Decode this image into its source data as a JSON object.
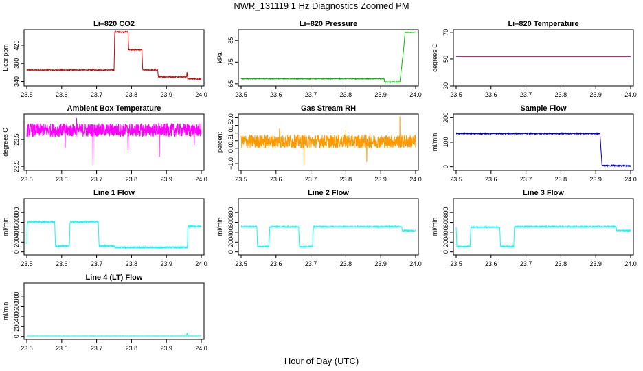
{
  "page": {
    "title": "NWR_131119  1 Hz Diagnostics Zoomed PM",
    "x_axis_title": "Hour of Day (UTC)"
  },
  "chart_data": [
    {
      "type": "line",
      "title": "Li–820 CO2",
      "ylabel": "Licor ppm",
      "color": "#dd0000",
      "xlim": [
        23.5,
        24.0
      ],
      "ylim": [
        330,
        455
      ],
      "x_ticks": [
        23.5,
        23.6,
        23.7,
        23.8,
        23.9,
        24.0
      ],
      "y_ticks": [
        340,
        380,
        420
      ],
      "x_tick_labels": [
        "23.5",
        "23.6",
        "23.7",
        "23.8",
        "23.9",
        "24.0"
      ],
      "y_tick_labels": [
        "340",
        "380",
        "420"
      ],
      "points": [
        [
          23.5,
          365
        ],
        [
          23.75,
          365
        ],
        [
          23.752,
          450
        ],
        [
          23.79,
          450
        ],
        [
          23.792,
          410
        ],
        [
          23.83,
          410
        ],
        [
          23.832,
          365
        ],
        [
          23.875,
          365
        ],
        [
          23.877,
          350
        ],
        [
          23.958,
          350
        ],
        [
          23.959,
          362
        ],
        [
          23.961,
          346
        ],
        [
          24.0,
          345
        ]
      ],
      "noise": 1
    },
    {
      "type": "line",
      "title": "Li–820 Pressure",
      "ylabel": "kPa",
      "color": "#00bb00",
      "xlim": [
        23.5,
        24.0
      ],
      "ylim": [
        64,
        90
      ],
      "x_ticks": [
        23.5,
        23.6,
        23.7,
        23.8,
        23.9,
        24.0
      ],
      "y_ticks": [
        65,
        75,
        85
      ],
      "x_tick_labels": [
        "23.5",
        "23.6",
        "23.7",
        "23.8",
        "23.9",
        "24.0"
      ],
      "y_tick_labels": [
        "65",
        "75",
        "85"
      ],
      "points": [
        [
          23.5,
          67.3
        ],
        [
          23.91,
          67.3
        ],
        [
          23.911,
          65.8
        ],
        [
          23.955,
          65.8
        ],
        [
          23.965,
          80
        ],
        [
          23.97,
          88.8
        ],
        [
          24.0,
          88.8
        ]
      ],
      "noise": 0.15
    },
    {
      "type": "line",
      "title": "Li–820 Temperature",
      "ylabel": "degrees C",
      "color": "#cc0077",
      "xlim": [
        23.5,
        24.0
      ],
      "ylim": [
        30,
        72
      ],
      "x_ticks": [
        23.5,
        23.6,
        23.7,
        23.8,
        23.9,
        24.0
      ],
      "y_ticks": [
        30,
        50,
        70
      ],
      "x_tick_labels": [
        "23.5",
        "23.6",
        "23.7",
        "23.8",
        "23.9",
        "24.0"
      ],
      "y_tick_labels": [
        "30",
        "50",
        "70"
      ],
      "points": [
        [
          23.5,
          51.8
        ],
        [
          24.0,
          51.8
        ]
      ],
      "noise": 0
    },
    {
      "type": "line",
      "title": "Ambient Box Temperature",
      "ylabel": "degrees C",
      "color": "#ff00ff",
      "xlim": [
        23.5,
        24.0
      ],
      "ylim": [
        22.35,
        24.45
      ],
      "x_ticks": [
        23.5,
        23.6,
        23.7,
        23.8,
        23.9,
        24.0
      ],
      "y_ticks": [
        22.5,
        23.5
      ],
      "x_tick_labels": [
        "23.5",
        "23.6",
        "23.7",
        "23.8",
        "23.9",
        "24.0"
      ],
      "y_tick_labels": [
        "22.5",
        "23.5"
      ],
      "points": [
        [
          23.5,
          23.85
        ],
        [
          24.0,
          23.85
        ]
      ],
      "noise": 0.25,
      "spikes": [
        [
          23.643,
          24.3
        ],
        [
          23.69,
          22.55
        ],
        [
          23.61,
          23.2
        ],
        [
          23.79,
          23.1
        ],
        [
          23.88,
          22.85
        ],
        [
          23.98,
          23.3
        ]
      ]
    },
    {
      "type": "line",
      "title": "Gas Stream RH",
      "ylabel": "percent",
      "color": "#ff9900",
      "xlim": [
        23.5,
        24.0
      ],
      "ylim": [
        -1.45,
        2.25
      ],
      "x_ticks": [
        23.5,
        23.6,
        23.7,
        23.8,
        23.9,
        24.0
      ],
      "y_ticks": [
        -1.0,
        0.0,
        0.5,
        1.0,
        1.5,
        2.0
      ],
      "x_tick_labels": [
        "23.5",
        "23.6",
        "23.7",
        "23.8",
        "23.9",
        "24.0"
      ],
      "y_tick_labels": [
        "−1.0",
        "0.0",
        "0.5",
        "1.0",
        "1.5",
        "2.0"
      ],
      "points": [
        [
          23.5,
          0.45
        ],
        [
          24.0,
          0.45
        ]
      ],
      "noise": 0.45,
      "spikes": [
        [
          23.955,
          2.1
        ],
        [
          23.68,
          -1.1
        ],
        [
          23.61,
          1.3
        ],
        [
          23.8,
          1.2
        ],
        [
          23.86,
          -0.9
        ]
      ]
    },
    {
      "type": "line",
      "title": "Sample Flow",
      "ylabel": "ml/min",
      "color": "#0000cc",
      "xlim": [
        23.5,
        24.0
      ],
      "ylim": [
        -15,
        215
      ],
      "x_ticks": [
        23.5,
        23.6,
        23.7,
        23.8,
        23.9,
        24.0
      ],
      "y_ticks": [
        0,
        100,
        200
      ],
      "x_tick_labels": [
        "23.5",
        "23.6",
        "23.7",
        "23.8",
        "23.9",
        "24.0"
      ],
      "y_tick_labels": [
        "0",
        "100",
        "200"
      ],
      "points": [
        [
          23.5,
          135
        ],
        [
          23.912,
          135
        ],
        [
          23.918,
          5
        ],
        [
          24.0,
          3
        ]
      ],
      "noise": 2
    },
    {
      "type": "line",
      "title": "Line 1 Flow",
      "ylabel": "ml/min",
      "color": "#00ffff",
      "xlim": [
        23.5,
        24.0
      ],
      "ylim": [
        -60,
        1080
      ],
      "x_ticks": [
        23.5,
        23.6,
        23.7,
        23.8,
        23.9,
        24.0
      ],
      "y_ticks": [
        0,
        200,
        400,
        600,
        800
      ],
      "x_tick_labels": [
        "23.5",
        "23.6",
        "23.7",
        "23.8",
        "23.9",
        "24.0"
      ],
      "y_tick_labels": [
        "0",
        "200",
        "400",
        "600",
        "800"
      ],
      "points": [
        [
          23.5,
          150
        ],
        [
          23.502,
          610
        ],
        [
          23.58,
          610
        ],
        [
          23.582,
          120
        ],
        [
          23.622,
          120
        ],
        [
          23.624,
          610
        ],
        [
          23.705,
          610
        ],
        [
          23.707,
          120
        ],
        [
          23.75,
          120
        ],
        [
          23.752,
          90
        ],
        [
          23.96,
          90
        ],
        [
          23.962,
          520
        ],
        [
          24.0,
          520
        ]
      ],
      "noise": 15
    },
    {
      "type": "line",
      "title": "Line 2 Flow",
      "ylabel": "ml/min",
      "color": "#00ffff",
      "xlim": [
        23.5,
        24.0
      ],
      "ylim": [
        -60,
        1080
      ],
      "x_ticks": [
        23.5,
        23.6,
        23.7,
        23.8,
        23.9,
        24.0
      ],
      "y_ticks": [
        0,
        200,
        400,
        600,
        800
      ],
      "x_tick_labels": [
        "23.5",
        "23.6",
        "23.7",
        "23.8",
        "23.9",
        "24.0"
      ],
      "y_tick_labels": [
        "0",
        "200",
        "400",
        "600",
        "800"
      ],
      "points": [
        [
          23.5,
          510
        ],
        [
          23.545,
          510
        ],
        [
          23.547,
          110
        ],
        [
          23.58,
          110
        ],
        [
          23.582,
          510
        ],
        [
          23.665,
          510
        ],
        [
          23.667,
          110
        ],
        [
          23.705,
          110
        ],
        [
          23.707,
          510
        ],
        [
          23.96,
          510
        ],
        [
          23.962,
          430
        ],
        [
          24.0,
          430
        ]
      ],
      "noise": 12
    },
    {
      "type": "line",
      "title": "Line 3 Flow",
      "ylabel": "ml/min",
      "color": "#00ffff",
      "xlim": [
        23.5,
        24.0
      ],
      "ylim": [
        -60,
        1080
      ],
      "x_ticks": [
        23.5,
        23.6,
        23.7,
        23.8,
        23.9,
        24.0
      ],
      "y_ticks": [
        0,
        200,
        400,
        600,
        800
      ],
      "x_tick_labels": [
        "23.5",
        "23.6",
        "23.7",
        "23.8",
        "23.9",
        "24.0"
      ],
      "y_tick_labels": [
        "0",
        "200",
        "400",
        "600",
        "800"
      ],
      "points": [
        [
          23.5,
          500
        ],
        [
          23.502,
          110
        ],
        [
          23.54,
          110
        ],
        [
          23.542,
          500
        ],
        [
          23.625,
          500
        ],
        [
          23.627,
          110
        ],
        [
          23.665,
          110
        ],
        [
          23.667,
          510
        ],
        [
          23.958,
          510
        ],
        [
          23.96,
          430
        ],
        [
          24.0,
          430
        ]
      ],
      "noise": 12
    },
    {
      "type": "line",
      "title": "Line 4 (LT) Flow",
      "ylabel": "ml/min",
      "color": "#00ffff",
      "xlim": [
        23.5,
        24.0
      ],
      "ylim": [
        -60,
        1080
      ],
      "x_ticks": [
        23.5,
        23.6,
        23.7,
        23.8,
        23.9,
        24.0
      ],
      "y_ticks": [
        0,
        200,
        400,
        600,
        800
      ],
      "x_tick_labels": [
        "23.5",
        "23.6",
        "23.7",
        "23.8",
        "23.9",
        "24.0"
      ],
      "y_tick_labels": [
        "0",
        "200",
        "400",
        "600",
        "800"
      ],
      "points": [
        [
          23.5,
          10
        ],
        [
          23.958,
          10
        ],
        [
          23.959,
          80
        ],
        [
          23.961,
          10
        ],
        [
          24.0,
          10
        ]
      ],
      "noise": 2
    }
  ]
}
